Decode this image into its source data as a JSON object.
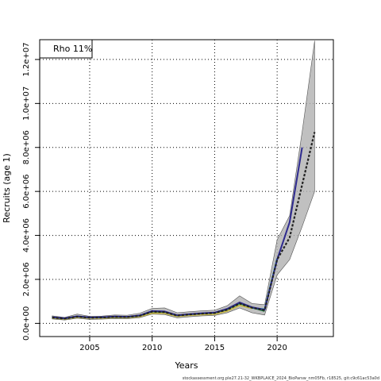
{
  "chart_data": {
    "type": "line",
    "xlabel": "Years",
    "ylabel": "Recruits (age 1)",
    "xlim": [
      2001,
      2024.5
    ],
    "ylim": [
      -600000,
      12900000
    ],
    "x_ticks": [
      2005,
      2010,
      2015,
      2020
    ],
    "x_tick_labels": [
      "2005",
      "2010",
      "2015",
      "2020"
    ],
    "y_ticks": [
      0,
      2000000,
      4000000,
      6000000,
      8000000,
      10000000,
      12000000
    ],
    "y_tick_labels": [
      "0.0e+00",
      "2.0e+06",
      "4.0e+06",
      "6.0e+06",
      "8.0e+06",
      "1.0e+07",
      "1.2e+07"
    ],
    "grid": "dotted",
    "legend": {
      "placement": "top-left",
      "text": "Rho 11%"
    },
    "band": {
      "x": [
        2002,
        2003,
        2004,
        2005,
        2006,
        2007,
        2008,
        2009,
        2010,
        2011,
        2012,
        2013,
        2014,
        2015,
        2016,
        2017,
        2018,
        2019,
        2020,
        2021,
        2022,
        2023
      ],
      "lower": [
        200000,
        150000,
        230000,
        180000,
        190000,
        220000,
        210000,
        260000,
        420000,
        400000,
        250000,
        300000,
        340000,
        360000,
        480000,
        700000,
        480000,
        380000,
        2200000,
        2900000,
        4400000,
        6000000
      ],
      "upper": [
        340000,
        270000,
        420000,
        320000,
        330000,
        380000,
        370000,
        460000,
        680000,
        700000,
        480000,
        530000,
        570000,
        600000,
        800000,
        1250000,
        900000,
        850000,
        3800000,
        4900000,
        8700000,
        12850000
      ]
    },
    "series": [
      {
        "color": "#2bb7c9",
        "x": [
          2002,
          2003,
          2004,
          2005,
          2006,
          2007,
          2008,
          2009,
          2010,
          2011,
          2012,
          2013,
          2014,
          2015,
          2016,
          2017,
          2018,
          2019,
          2020
        ],
        "values": [
          260000,
          210000,
          300000,
          250000,
          260000,
          290000,
          280000,
          340000,
          520000,
          500000,
          350000,
          400000,
          440000,
          460000,
          600000,
          870000,
          700000,
          640000,
          2950000
        ]
      },
      {
        "color": "#c8b84a",
        "x": [
          2002,
          2003,
          2004,
          2005,
          2006,
          2007,
          2008,
          2009,
          2010,
          2011,
          2012,
          2013,
          2014,
          2015,
          2016,
          2017,
          2018
        ],
        "values": [
          250000,
          200000,
          280000,
          240000,
          240000,
          270000,
          260000,
          310000,
          470000,
          460000,
          320000,
          370000,
          400000,
          420000,
          560000,
          820000,
          680000
        ]
      },
      {
        "color": "#1f7a3a",
        "x": [
          2002,
          2003,
          2004,
          2005,
          2006,
          2007,
          2008,
          2009,
          2010,
          2011,
          2012,
          2013,
          2014,
          2015,
          2016,
          2017,
          2018,
          2019
        ],
        "values": [
          270000,
          220000,
          310000,
          260000,
          270000,
          300000,
          290000,
          350000,
          540000,
          520000,
          360000,
          410000,
          450000,
          480000,
          640000,
          920000,
          720000,
          560000
        ]
      },
      {
        "color": "#2e2a8f",
        "x": [
          2002,
          2003,
          2004,
          2005,
          2006,
          2007,
          2008,
          2009,
          2010,
          2011,
          2012,
          2013,
          2014,
          2015,
          2016,
          2017,
          2018,
          2019,
          2020,
          2021,
          2022
        ],
        "values": [
          280000,
          230000,
          320000,
          270000,
          280000,
          310000,
          300000,
          360000,
          560000,
          540000,
          370000,
          420000,
          460000,
          490000,
          660000,
          950000,
          730000,
          620000,
          2900000,
          4600000,
          8000000
        ]
      },
      {
        "color": "#222222",
        "dashed": true,
        "x": [
          2002,
          2003,
          2004,
          2005,
          2006,
          2007,
          2008,
          2009,
          2010,
          2011,
          2012,
          2013,
          2014,
          2015,
          2016,
          2017,
          2018,
          2019,
          2020,
          2021,
          2022,
          2023
        ],
        "values": [
          265000,
          215000,
          305000,
          255000,
          265000,
          295000,
          285000,
          345000,
          530000,
          510000,
          355000,
          405000,
          445000,
          470000,
          620000,
          900000,
          710000,
          600000,
          2900000,
          3900000,
          6300000,
          8700000
        ]
      }
    ]
  },
  "footer": "stockassessment.org.ple27.21-32_WKBPLAICE_2024_BioParsw_nm05Fb, r18525, git:c9c61ac53a0d"
}
